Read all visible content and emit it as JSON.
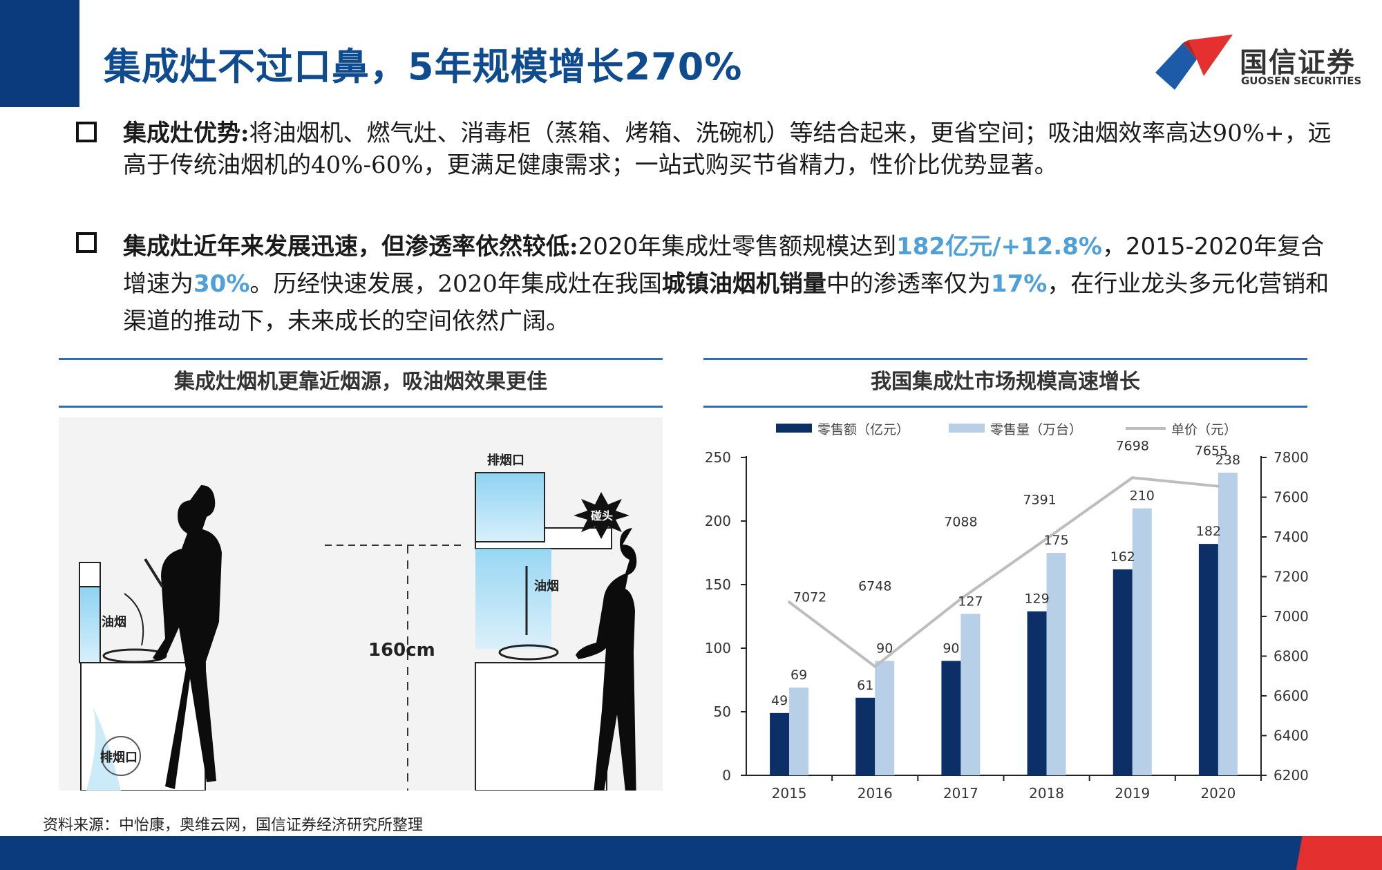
{
  "title": "集成灶不过口鼻，5年规模增长270%",
  "logo": {
    "name": "国信证券",
    "sub": "GUOSEN SECURITIES"
  },
  "bullets": [
    {
      "heading": "集成灶优势:",
      "body": "将油烟机、燃气灶、消毒柜（蒸箱、烤箱、洗碗机）等结合起来，更省空间；吸油烟效率高达90%+，远高于传统油烟机的40%-60%，更满足健康需求；一站式购买节省精力，性价比优势显著。"
    },
    {
      "heading": "集成灶近年来发展迅速，但渗透率依然较低:",
      "t1": "2020年集成灶零售额规模达到",
      "h1": "182亿元/+12.8%",
      "t2": "，2015-2020年复合增速为",
      "h2": "30%",
      "t3": "。历经快速发展，2020年集成灶在我国",
      "b1": "城镇油烟机销量",
      "t4": "中的渗透率仅为",
      "h3": "17%",
      "t5": "，在行业龙头多元化营销和渠道的推动下，未来成长的空间依然广阔。"
    }
  ],
  "left_panel": {
    "title": "集成灶烟机更靠近烟源，吸油烟效果更佳",
    "labels": {
      "exhaust_top": "排烟口",
      "smoke_left": "油烟",
      "smoke_right": "油烟",
      "exhaust_bottom": "排烟口",
      "height": "160cm",
      "hit": "碰头"
    }
  },
  "right_panel": {
    "title": "我国集成灶市场规模高速增长"
  },
  "chart_data": {
    "type": "bar",
    "categories": [
      "2015",
      "2016",
      "2017",
      "2018",
      "2019",
      "2020"
    ],
    "series": [
      {
        "name": "零售额（亿元）",
        "type": "bar",
        "axis": "left",
        "color": "#0b2f66",
        "values": [
          49,
          61,
          90,
          129,
          162,
          182
        ]
      },
      {
        "name": "零售量（万台）",
        "type": "bar",
        "axis": "left",
        "color": "#b8cfe8",
        "values": [
          69,
          90,
          127,
          175,
          210,
          238
        ]
      },
      {
        "name": "单价（元）",
        "type": "line",
        "axis": "right",
        "color": "#bdbdbd",
        "values": [
          7072,
          6748,
          7088,
          7391,
          7698,
          7655
        ]
      }
    ],
    "y_left": {
      "min": 0,
      "max": 250,
      "ticks": [
        0,
        50,
        100,
        150,
        200,
        250
      ]
    },
    "y_right": {
      "min": 6200,
      "max": 7800,
      "ticks": [
        6200,
        6400,
        6600,
        6800,
        7000,
        7200,
        7400,
        7600,
        7800
      ]
    },
    "legend_position": "top",
    "grid": false
  },
  "source": "资料来源：中怡康，奥维云网，国信证券经济研究所整理",
  "colors": {
    "brand_blue": "#0b3b7c",
    "title_blue": "#0f4b8f",
    "highlight": "#4ea1d8",
    "accent_red": "#e53030"
  }
}
